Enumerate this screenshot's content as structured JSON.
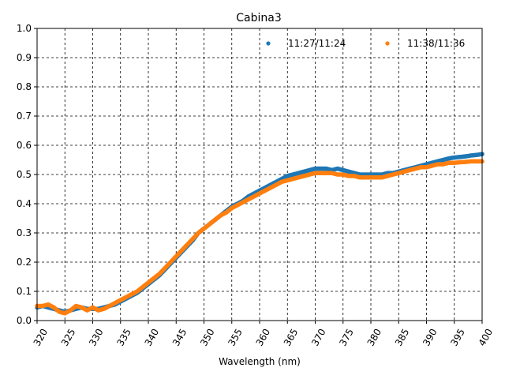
{
  "chart_data": {
    "type": "scatter",
    "title": "Cabina3",
    "xlabel": "Wavelength (nm)",
    "ylabel": "",
    "xlim": [
      320,
      400
    ],
    "ylim": [
      0.0,
      1.0
    ],
    "xticks": [
      "320",
      "325",
      "330",
      "335",
      "340",
      "345",
      "350",
      "355",
      "360",
      "365",
      "370",
      "375",
      "380",
      "385",
      "390",
      "395",
      "400"
    ],
    "yticks": [
      "0.0",
      "0.1",
      "0.2",
      "0.3",
      "0.4",
      "0.5",
      "0.6",
      "0.7",
      "0.8",
      "0.9",
      "1.0"
    ],
    "grid": true,
    "legend_position": "top-right",
    "series": [
      {
        "name": "11:27/11:24",
        "color": "#1f77b4",
        "x": [
          320,
          321,
          322,
          323,
          324,
          325,
          326,
          327,
          328,
          329,
          330,
          331,
          332,
          333,
          334,
          335,
          336,
          337,
          338,
          339,
          340,
          341,
          342,
          343,
          344,
          345,
          346,
          347,
          348,
          349,
          350,
          351,
          352,
          353,
          354,
          355,
          356,
          357,
          358,
          359,
          360,
          361,
          362,
          363,
          364,
          365,
          366,
          367,
          368,
          369,
          370,
          371,
          372,
          373,
          374,
          375,
          376,
          377,
          378,
          379,
          380,
          381,
          382,
          383,
          384,
          385,
          386,
          387,
          388,
          389,
          390,
          391,
          392,
          393,
          394,
          395,
          396,
          397,
          398,
          399,
          400
        ],
        "y": [
          0.045,
          0.05,
          0.045,
          0.04,
          0.035,
          0.03,
          0.035,
          0.04,
          0.045,
          0.04,
          0.04,
          0.04,
          0.045,
          0.05,
          0.055,
          0.065,
          0.075,
          0.085,
          0.095,
          0.11,
          0.125,
          0.14,
          0.155,
          0.175,
          0.195,
          0.215,
          0.235,
          0.255,
          0.275,
          0.3,
          0.315,
          0.33,
          0.345,
          0.36,
          0.375,
          0.39,
          0.4,
          0.41,
          0.425,
          0.435,
          0.445,
          0.455,
          0.465,
          0.475,
          0.485,
          0.495,
          0.5,
          0.505,
          0.51,
          0.515,
          0.52,
          0.52,
          0.52,
          0.515,
          0.52,
          0.515,
          0.51,
          0.505,
          0.5,
          0.5,
          0.5,
          0.5,
          0.5,
          0.505,
          0.505,
          0.51,
          0.515,
          0.52,
          0.525,
          0.53,
          0.535,
          0.54,
          0.545,
          0.55,
          0.555,
          0.558,
          0.56,
          0.562,
          0.565,
          0.567,
          0.57
        ]
      },
      {
        "name": "11:38/11:36",
        "color": "#ff7f0e",
        "x": [
          320,
          321,
          322,
          323,
          324,
          325,
          326,
          327,
          328,
          329,
          330,
          331,
          332,
          333,
          334,
          335,
          336,
          337,
          338,
          339,
          340,
          341,
          342,
          343,
          344,
          345,
          346,
          347,
          348,
          349,
          350,
          351,
          352,
          353,
          354,
          355,
          356,
          357,
          358,
          359,
          360,
          361,
          362,
          363,
          364,
          365,
          366,
          367,
          368,
          369,
          370,
          371,
          372,
          373,
          374,
          375,
          376,
          377,
          378,
          379,
          380,
          381,
          382,
          383,
          384,
          385,
          386,
          387,
          388,
          389,
          390,
          391,
          392,
          393,
          394,
          395,
          396,
          397,
          398,
          399,
          400
        ],
        "y": [
          0.05,
          0.05,
          0.055,
          0.045,
          0.03,
          0.025,
          0.035,
          0.05,
          0.045,
          0.035,
          0.045,
          0.035,
          0.04,
          0.05,
          0.06,
          0.07,
          0.08,
          0.09,
          0.1,
          0.115,
          0.13,
          0.145,
          0.16,
          0.18,
          0.2,
          0.22,
          0.24,
          0.26,
          0.28,
          0.3,
          0.315,
          0.33,
          0.345,
          0.36,
          0.37,
          0.385,
          0.395,
          0.405,
          0.415,
          0.425,
          0.435,
          0.445,
          0.455,
          0.465,
          0.475,
          0.48,
          0.485,
          0.49,
          0.495,
          0.5,
          0.505,
          0.505,
          0.505,
          0.505,
          0.5,
          0.5,
          0.495,
          0.495,
          0.49,
          0.49,
          0.49,
          0.49,
          0.49,
          0.495,
          0.5,
          0.505,
          0.51,
          0.515,
          0.52,
          0.525,
          0.525,
          0.53,
          0.535,
          0.535,
          0.54,
          0.54,
          0.542,
          0.543,
          0.545,
          0.545,
          0.545
        ]
      }
    ]
  }
}
